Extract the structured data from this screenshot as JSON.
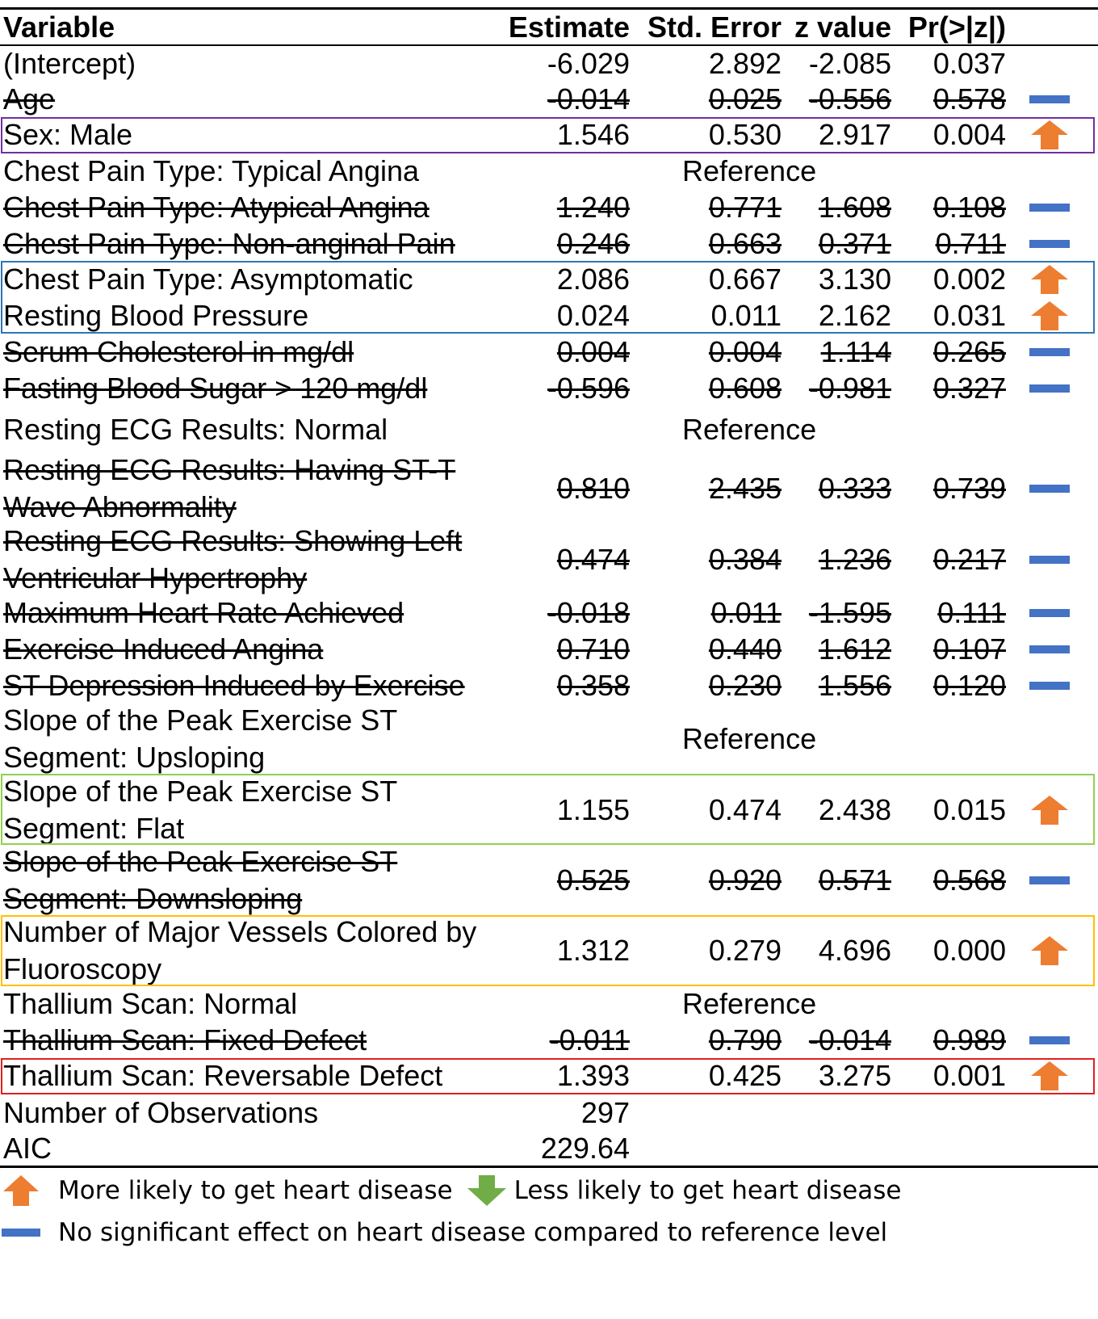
{
  "colors": {
    "up_arrow": "#ED7D31",
    "down_arrow": "#70AD47",
    "no_effect": "#4472C4",
    "box_sex": "#7030A0",
    "box_chest": "#2E75B6",
    "box_slope": "#92D050",
    "box_vessels": "#FFC000",
    "box_thallium": "#E02020"
  },
  "header": {
    "variable": "Variable",
    "estimate": "Estimate",
    "std_error": "Std. Error",
    "z_value": "z value",
    "p_value": "Pr(>|z|)"
  },
  "rows": [
    {
      "variable": "(Intercept)",
      "estimate": "-6.029",
      "std_error": "2.892",
      "z_value": "-2.085",
      "p_value": "0.037",
      "indicator": "none"
    },
    {
      "variable": "Age",
      "estimate": "-0.014",
      "std_error": "0.025",
      "z_value": "-0.556",
      "p_value": "0.578",
      "indicator": "no-effect"
    },
    {
      "variable": "Sex: Male",
      "estimate": "1.546",
      "std_error": "0.530",
      "z_value": "2.917",
      "p_value": "0.004",
      "indicator": "up"
    },
    {
      "variable": "Chest Pain Type: Typical Angina",
      "reference": "Reference"
    },
    {
      "variable": "Chest Pain Type: Atypical Angina",
      "estimate": "1.240",
      "std_error": "0.771",
      "z_value": "1.608",
      "p_value": "0.108",
      "indicator": "no-effect"
    },
    {
      "variable": "Chest Pain Type: Non-anginal Pain",
      "estimate": "0.246",
      "std_error": "0.663",
      "z_value": "0.371",
      "p_value": "0.711",
      "indicator": "no-effect"
    },
    {
      "variable": "Chest Pain Type: Asymptomatic",
      "estimate": "2.086",
      "std_error": "0.667",
      "z_value": "3.130",
      "p_value": "0.002",
      "indicator": "up"
    },
    {
      "variable": "Resting Blood Pressure",
      "estimate": "0.024",
      "std_error": "0.011",
      "z_value": "2.162",
      "p_value": "0.031",
      "indicator": "up"
    },
    {
      "variable": "Serum Cholesterol in mg/dl",
      "estimate": "0.004",
      "std_error": "0.004",
      "z_value": "1.114",
      "p_value": "0.265",
      "indicator": "no-effect"
    },
    {
      "variable": "Fasting Blood Sugar > 120 mg/dl",
      "estimate": "-0.596",
      "std_error": "0.608",
      "z_value": "-0.981",
      "p_value": "0.327",
      "indicator": "no-effect"
    },
    {
      "variable": "Resting ECG Results: Normal",
      "reference": "Reference"
    },
    {
      "variable": "Resting ECG Results: Having ST-T Wave Abnormality",
      "estimate": "0.810",
      "std_error": "2.435",
      "z_value": "0.333",
      "p_value": "0.739",
      "indicator": "no-effect"
    },
    {
      "variable": "Resting ECG Results: Showing Left Ventricular Hypertrophy",
      "estimate": "0.474",
      "std_error": "0.384",
      "z_value": "1.236",
      "p_value": "0.217",
      "indicator": "no-effect"
    },
    {
      "variable": "Maximum Heart Rate Achieved",
      "estimate": "-0.018",
      "std_error": "0.011",
      "z_value": "-1.595",
      "p_value": "0.111",
      "indicator": "no-effect"
    },
    {
      "variable": "Exercise Induced Angina",
      "estimate": "0.710",
      "std_error": "0.440",
      "z_value": "1.612",
      "p_value": "0.107",
      "indicator": "no-effect"
    },
    {
      "variable": "ST Depression Induced by Exercise",
      "estimate": "0.358",
      "std_error": "0.230",
      "z_value": "1.556",
      "p_value": "0.120",
      "indicator": "no-effect"
    },
    {
      "variable": "Slope of the Peak Exercise ST Segment: Upsloping",
      "reference": "Reference"
    },
    {
      "variable": "Slope of the Peak Exercise ST Segment: Flat",
      "estimate": "1.155",
      "std_error": "0.474",
      "z_value": "2.438",
      "p_value": "0.015",
      "indicator": "up"
    },
    {
      "variable": "Slope of the Peak Exercise ST Segment: Downsloping",
      "estimate": "0.525",
      "std_error": "0.920",
      "z_value": "0.571",
      "p_value": "0.568",
      "indicator": "no-effect"
    },
    {
      "variable": "Number of Major Vessels Colored by Fluoroscopy",
      "estimate": "1.312",
      "std_error": "0.279",
      "z_value": "4.696",
      "p_value": "0.000",
      "indicator": "up"
    },
    {
      "variable": "Thallium Scan: Normal",
      "reference": "Reference"
    },
    {
      "variable": "Thallium Scan: Fixed Defect",
      "estimate": "-0.011",
      "std_error": "0.790",
      "z_value": "-0.014",
      "p_value": "0.989",
      "indicator": "no-effect"
    },
    {
      "variable": "Thallium Scan: Reversable Defect",
      "estimate": "1.393",
      "std_error": "0.425",
      "z_value": "3.275",
      "p_value": "0.001",
      "indicator": "up"
    }
  ],
  "footer": {
    "observations_label": "Number of Observations",
    "observations_value": "297",
    "aic_label": "AIC",
    "aic_value": "229.64"
  },
  "legend": {
    "more_likely": "More likely to get heart disease",
    "less_likely": "Less likely to get heart disease",
    "no_effect": "No significant effect on heart disease compared to reference level"
  }
}
